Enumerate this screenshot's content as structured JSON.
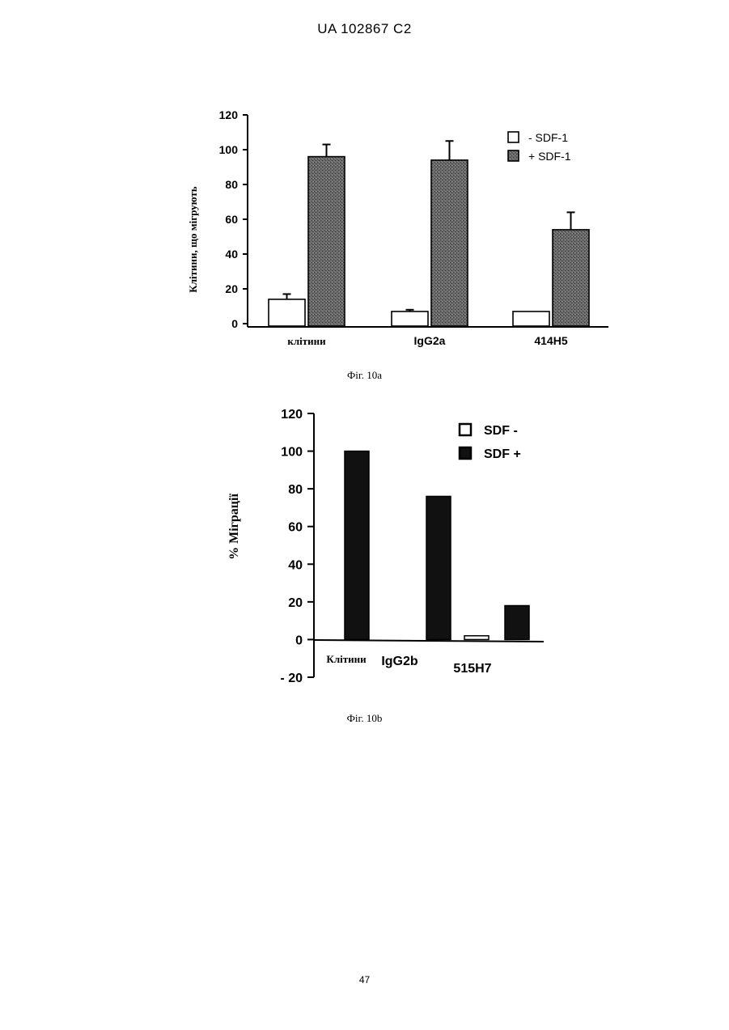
{
  "page": {
    "header": "UA   102867   C2",
    "page_number": "47"
  },
  "chart_data": [
    {
      "type": "bar",
      "caption": "Фіг. 10а",
      "ylabel": "Клітини, що мігрують",
      "ylim": [
        0,
        120
      ],
      "yticks": [
        0,
        20,
        40,
        60,
        80,
        100,
        120
      ],
      "categories": [
        "клітини",
        "IgG2a",
        "414H5"
      ],
      "series": [
        {
          "name": "- SDF-1",
          "values": [
            14,
            7,
            7
          ],
          "errors": [
            3,
            1,
            0
          ],
          "color": "#ffffff"
        },
        {
          "name": "+ SDF-1",
          "values": [
            96,
            94,
            54
          ],
          "errors": [
            7,
            11,
            10
          ],
          "color": "#555555"
        }
      ],
      "legend": "top-right"
    },
    {
      "type": "bar",
      "caption": "Фіг. 10b",
      "ylabel": "% Міграції",
      "ylim": [
        -20,
        120
      ],
      "yticks": [
        -20,
        0,
        20,
        40,
        60,
        80,
        100,
        120
      ],
      "ytick_labels": [
        "- 20",
        "0",
        "20",
        "40",
        "60",
        "80",
        "100",
        "120"
      ],
      "categories": [
        "Клітини",
        "IgG2b",
        "515H7"
      ],
      "series": [
        {
          "name": "SDF -",
          "values": [
            0,
            0,
            2
          ],
          "color": "#ffffff"
        },
        {
          "name": "SDF +",
          "values": [
            100,
            76,
            18
          ],
          "color": "#111111"
        }
      ],
      "legend": "top-right"
    }
  ]
}
